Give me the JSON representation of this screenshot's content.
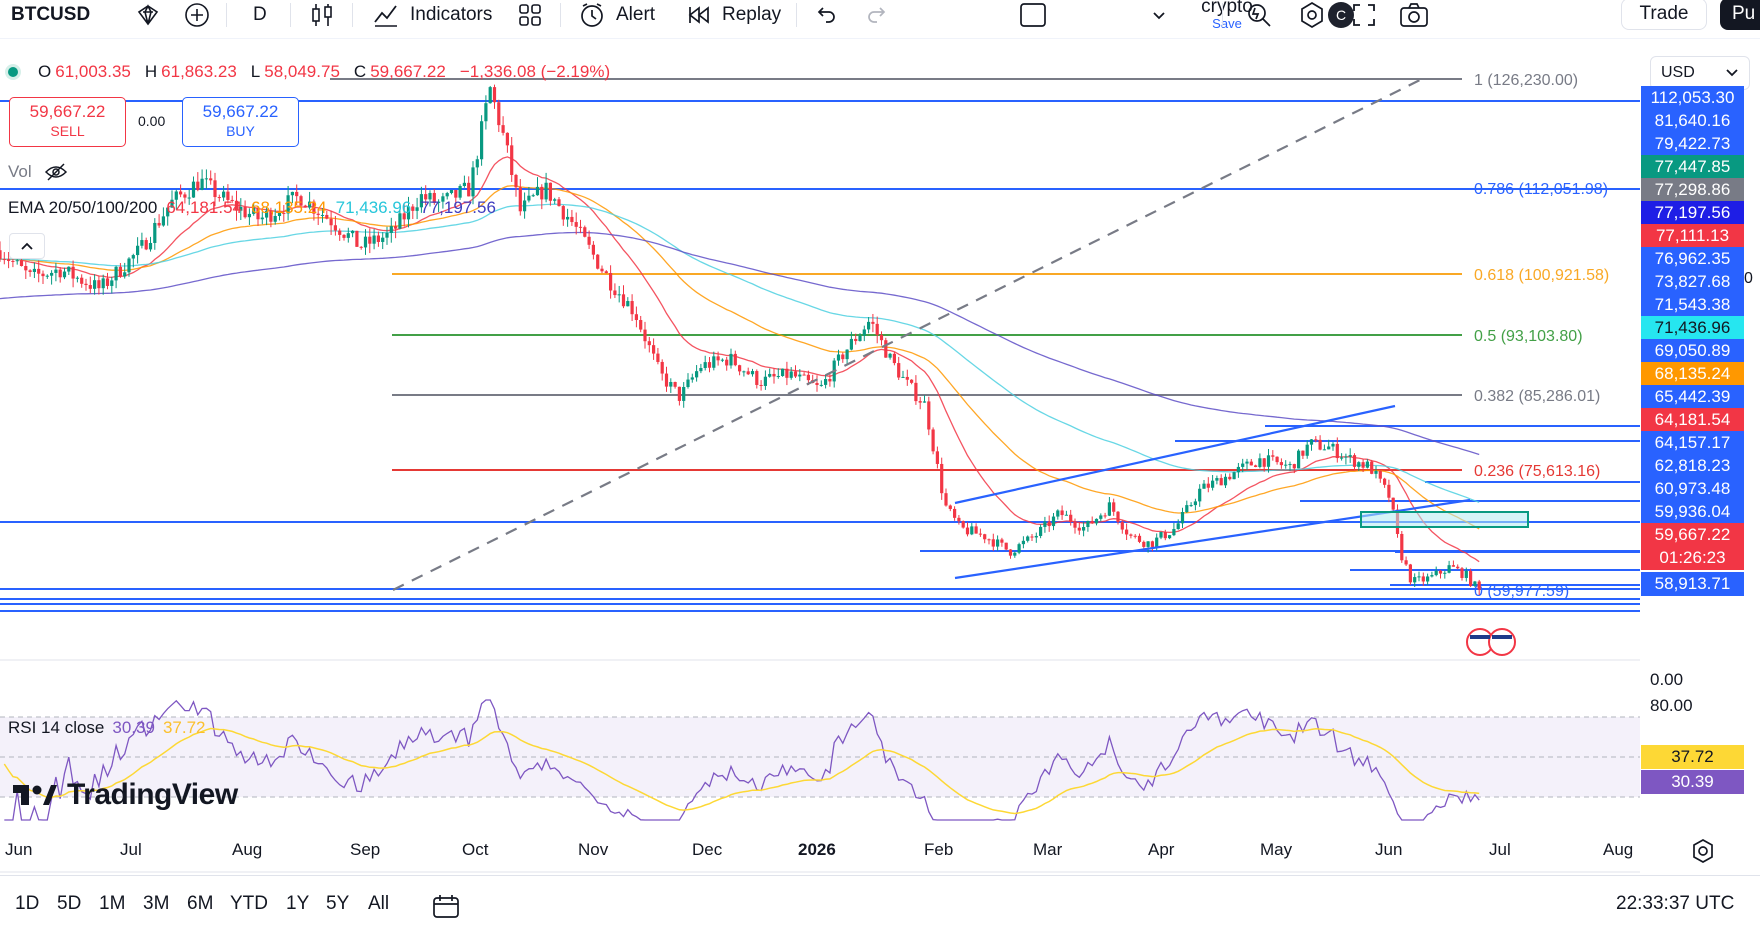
{
  "toolbar": {
    "symbol": "BTCUSD",
    "interval": "D",
    "indicators_label": "Indicators",
    "alert_label": "Alert",
    "replay_label": "Replay",
    "layout_name": "crypto",
    "layout_save": "Save",
    "avatar_letter": "C",
    "trade_label": "Trade",
    "publish_label": "Pu",
    "icons": [
      "star-icon",
      "add-symbol-icon",
      "candles-icon",
      "indicators-icon",
      "templates-icon",
      "alert-icon",
      "replay-icon",
      "undo-icon",
      "redo-icon",
      "layout-icon",
      "chevron-down-icon",
      "quick-search-icon",
      "settings-icon",
      "fullscreen-icon",
      "snapshot-icon"
    ]
  },
  "legend": {
    "o_label": "O",
    "o": "61,003.35",
    "h_label": "H",
    "h": "61,863.23",
    "l_label": "L",
    "l": "58,049.75",
    "c_label": "C",
    "c": "59,667.22",
    "change": "−1,336.08 (−2.19%)"
  },
  "order": {
    "sell_price": "59,667.22",
    "sell_label": "SELL",
    "spread": "0.00",
    "buy_price": "59,667.22",
    "buy_label": "BUY"
  },
  "vol_label": "Vol",
  "ema": {
    "label": "EMA 20/50/100/200",
    "v20": "64,181.54",
    "v50": "68,135.24",
    "v100": "71,436.96",
    "v200": "77,197.56",
    "colors": {
      "ema20": "#f23645",
      "ema50": "#ff9800",
      "ema100": "#4dd0e1",
      "ema200": "#5e4fc7"
    }
  },
  "fib": [
    {
      "ratio": "1",
      "price": "126,230.00",
      "text": "1 (126,230.00)",
      "color": "#787b86"
    },
    {
      "ratio": "0.786",
      "price": "112,051.98",
      "text": "0.786 (112,051.98)",
      "color": "#2962ff"
    },
    {
      "ratio": "0.618",
      "price": "100,921.58",
      "text": "0.618 (100,921.58)",
      "color": "#f9a825"
    },
    {
      "ratio": "0.5",
      "price": "93,103.80",
      "text": "0.5 (93,103.80)",
      "color": "#43a047"
    },
    {
      "ratio": "0.382",
      "price": "85,286.01",
      "text": "0.382 (85,286.01)",
      "color": "#787b86"
    },
    {
      "ratio": "0.236",
      "price": "75,613.16",
      "text": "0.236 (75,613.16)",
      "color": "#e53935"
    },
    {
      "ratio": "0",
      "price": "59,977.59",
      "text": "0 (59,977.59)",
      "color": "#2962ff"
    }
  ],
  "price_scale": {
    "currency": "USD",
    "labels": [
      {
        "text": "112,053.30",
        "style": "blue"
      },
      {
        "text": "81,640.16",
        "style": "blue"
      },
      {
        "text": "79,422.73",
        "style": "blue"
      },
      {
        "text": "77,447.85",
        "style": "green"
      },
      {
        "text": "77,298.86",
        "style": "gray"
      },
      {
        "text": "77,197.56",
        "style": "navy"
      },
      {
        "text": "77,111.13",
        "style": "red"
      },
      {
        "text": "76,962.35",
        "style": "blue"
      },
      {
        "text": "73,827.68",
        "style": "blue"
      },
      {
        "text": "71,543.38",
        "style": "blue"
      },
      {
        "text": "71,436.96",
        "style": "cyan"
      },
      {
        "text": "69,050.89",
        "style": "blue"
      },
      {
        "text": "68,135.24",
        "style": "orange"
      },
      {
        "text": "65,442.39",
        "style": "blue"
      },
      {
        "text": "64,181.54",
        "style": "red"
      },
      {
        "text": "64,157.17",
        "style": "blue"
      },
      {
        "text": "62,818.23",
        "style": "blue"
      },
      {
        "text": "60,973.48",
        "style": "blue"
      },
      {
        "text": "59,936.04",
        "style": "blue"
      },
      {
        "text": "59,667.22",
        "style": "red"
      },
      {
        "text": "01:26:23",
        "style": "red"
      },
      {
        "text": "58,913.71",
        "style": "blue"
      }
    ],
    "side_zero": "0",
    "vol_zero": "0.00"
  },
  "rsi": {
    "label": "RSI 14 close",
    "value": "30.39",
    "ma": "37.72",
    "level_top": "80.00",
    "value_color": "#7e57c2",
    "ma_color": "#fdd835"
  },
  "branding": "TradingView",
  "time_axis": [
    "Jun",
    "Jul",
    "Aug",
    "Sep",
    "Oct",
    "Nov",
    "Dec",
    "2026",
    "Feb",
    "Mar",
    "Apr",
    "May",
    "Jun",
    "Jul",
    "Aug"
  ],
  "ranges": [
    "1D",
    "5D",
    "1M",
    "3M",
    "6M",
    "YTD",
    "1Y",
    "5Y",
    "All"
  ],
  "clock": "22:33:37 UTC",
  "colors": {
    "up": "#089981",
    "down": "#f23645",
    "accent": "#2962ff"
  }
}
